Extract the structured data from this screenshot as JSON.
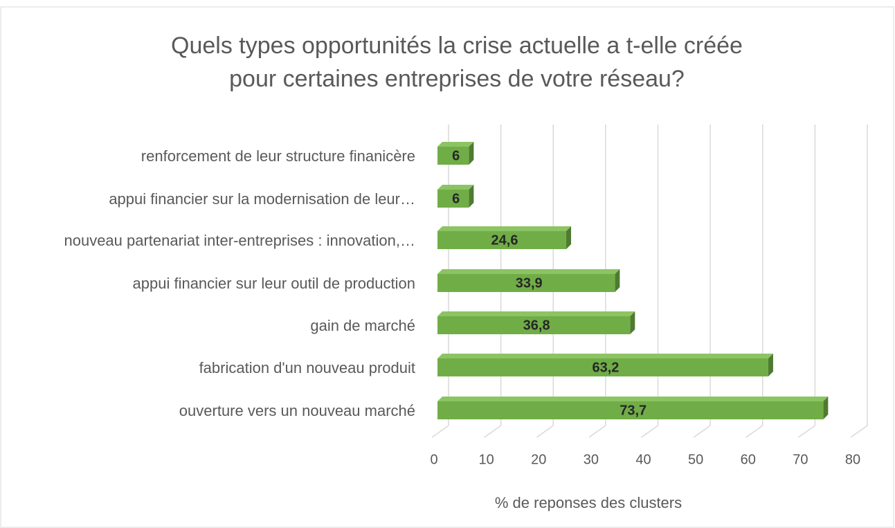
{
  "chart_data": {
    "type": "bar3d_horizontal",
    "title": [
      "Quels types opportunités la crise actuelle a t-elle créée",
      "pour certaines entreprises de votre réseau?"
    ],
    "x_label": "% de reponses des clusters",
    "categories": [
      "renforcement de leur structure finanicère",
      "appui financier sur la modernisation de leur…",
      "nouveau partenariat inter-entreprises : innovation,…",
      "appui financier sur leur outil de production",
      "gain de marché",
      "fabrication d'un nouveau produit",
      "ouverture vers un nouveau marché"
    ],
    "values": [
      6,
      6,
      24.6,
      33.9,
      36.8,
      63.2,
      73.7
    ],
    "value_labels": [
      "6",
      "6",
      "24,6",
      "33,9",
      "36,8",
      "63,2",
      "73,7"
    ],
    "color": "#70ad47",
    "xlim": [
      0,
      80
    ],
    "xticks": [
      0,
      10,
      20,
      30,
      40,
      50,
      60,
      70,
      80
    ],
    "grid": true
  }
}
